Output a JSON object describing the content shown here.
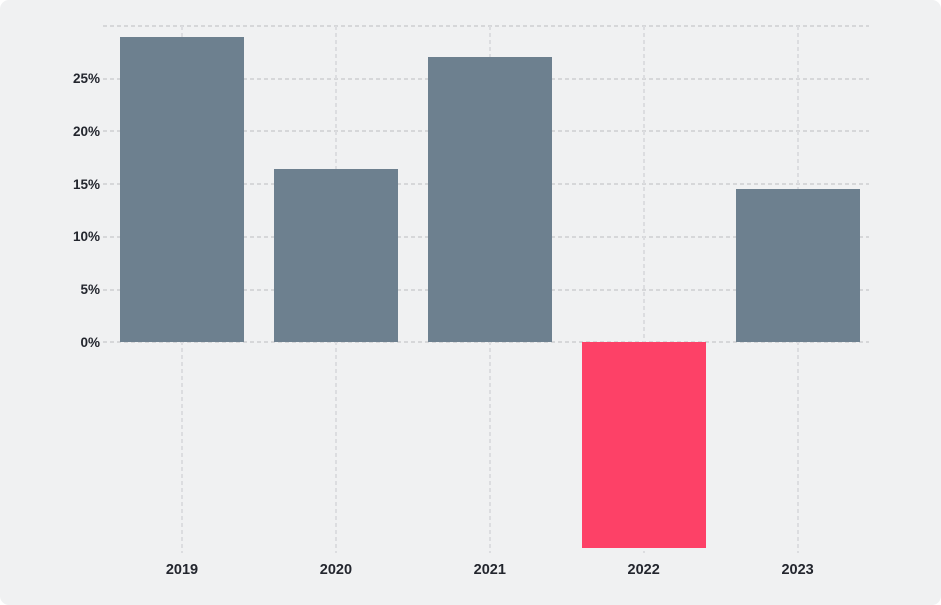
{
  "chart_data": {
    "type": "bar",
    "title": "",
    "xlabel": "",
    "ylabel": "",
    "categories": [
      "2019",
      "2020",
      "2021",
      "2022",
      "2023"
    ],
    "values": [
      29.0,
      16.4,
      27.1,
      -19.5,
      14.5
    ],
    "value_unit": "%",
    "ytick_labels": [
      "0%",
      "5%",
      "10%",
      "15%",
      "20%",
      "25%"
    ],
    "ytick_values": [
      0,
      5,
      10,
      15,
      20,
      25
    ],
    "ylim": [
      -20,
      30
    ],
    "grid_step": 5,
    "grid_style": "dashed",
    "legend_position": "none",
    "colors": {
      "bar_positive": "#6d808f",
      "bar_negative": "#fd4167",
      "card_background": "#f0f1f2",
      "grid_horizontal": "#d6d7d9",
      "grid_vertical": "#dcdde0",
      "axis_label": "#23262e"
    }
  }
}
